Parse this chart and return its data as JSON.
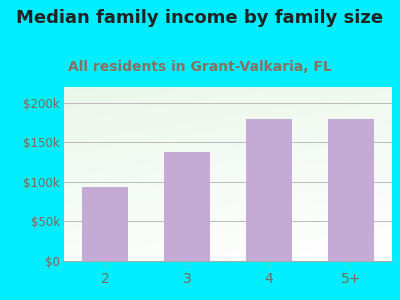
{
  "title": "Median family income by family size",
  "subtitle": "All residents in Grant-Valkaria, FL",
  "categories": [
    "2",
    "3",
    "4",
    "5+"
  ],
  "values": [
    93000,
    138000,
    180000,
    179000
  ],
  "bar_color": "#c4aad4",
  "title_fontsize": 13,
  "subtitle_fontsize": 10,
  "subtitle_color": "#8a7060",
  "title_color": "#222222",
  "tick_color": "#7a6858",
  "background_outer": "#00eeff",
  "plot_bg_top": "#d0e8d0",
  "plot_bg_bottom": "#f8fff8",
  "ylim": [
    0,
    220000
  ],
  "yticks": [
    0,
    50000,
    100000,
    150000,
    200000
  ],
  "ytick_labels": [
    "$0",
    "$50k",
    "$100k",
    "$150k",
    "$200k"
  ]
}
